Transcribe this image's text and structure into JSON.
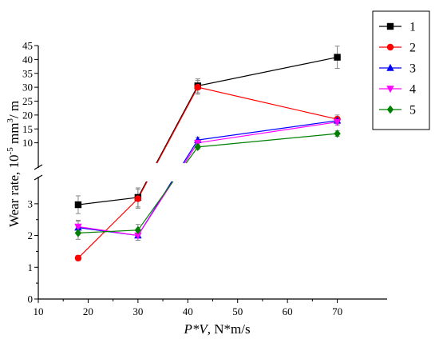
{
  "chart_data": {
    "type": "line",
    "title": "",
    "xlabel_italic": "P*V",
    "xlabel_rest": ", N*m/s",
    "ylabel_main": "Wear rate, 10",
    "ylabel_exp1": "-5",
    "ylabel_mid": " mm",
    "ylabel_exp2": "3",
    "ylabel_end": "/ m",
    "xlim": [
      10,
      80
    ],
    "xticks": [
      10,
      20,
      30,
      40,
      50,
      60,
      70
    ],
    "y_axis_broken": true,
    "y_lower_range": [
      0,
      3.5
    ],
    "y_lower_ticks": [
      0,
      1,
      2,
      3
    ],
    "y_upper_range": [
      5,
      45
    ],
    "y_upper_ticks": [
      10,
      15,
      20,
      25,
      30,
      35,
      40,
      45
    ],
    "legend_position": "top-right",
    "x": [
      18,
      30,
      42,
      70
    ],
    "series": [
      {
        "name": "1",
        "color": "#000000",
        "marker": "square",
        "values": [
          2.97,
          3.2,
          30.5,
          40.8
        ],
        "errors": [
          0.28,
          0.3,
          2.5,
          4.0
        ]
      },
      {
        "name": "2",
        "color": "#ff0000",
        "marker": "circle",
        "values": [
          1.29,
          3.16,
          30.0,
          18.5
        ],
        "errors": [
          0.08,
          0.3,
          2.5,
          1.5
        ]
      },
      {
        "name": "3",
        "color": "#0000ff",
        "marker": "triangle-up",
        "values": [
          2.25,
          2.0,
          11.0,
          18.0
        ],
        "errors": [
          0.2,
          0.15,
          1.0,
          1.2
        ]
      },
      {
        "name": "4",
        "color": "#ff00ff",
        "marker": "triangle-down",
        "values": [
          2.28,
          2.0,
          10.0,
          17.5
        ],
        "errors": [
          0.2,
          0.15,
          1.0,
          1.2
        ]
      },
      {
        "name": "5",
        "color": "#008000",
        "marker": "diamond",
        "values": [
          2.08,
          2.17,
          8.5,
          13.3
        ],
        "errors": [
          0.2,
          0.18,
          0.8,
          1.0
        ]
      }
    ]
  }
}
